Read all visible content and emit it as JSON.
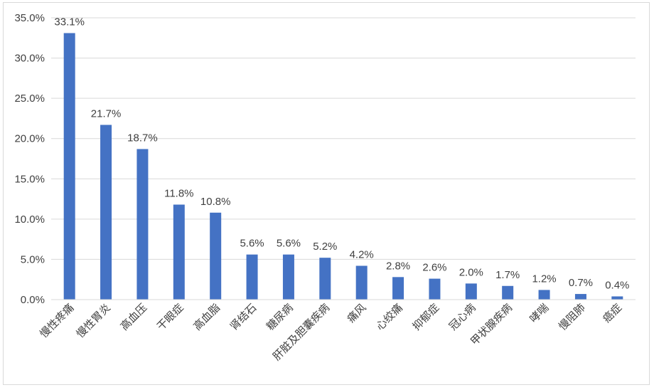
{
  "chart_data": {
    "type": "bar",
    "title": "",
    "xlabel": "",
    "ylabel": "",
    "ylim": [
      0,
      35
    ],
    "y_tick_labels": [
      "0.0%",
      "5.0%",
      "10.0%",
      "15.0%",
      "20.0%",
      "25.0%",
      "30.0%",
      "35.0%"
    ],
    "y_ticks": [
      0,
      5,
      10,
      15,
      20,
      25,
      30,
      35
    ],
    "grid": true,
    "bar_color": "#4472C4",
    "categories": [
      "慢性疼痛",
      "慢性胃炎",
      "高血压",
      "干眼症",
      "高血脂",
      "肾结石",
      "糖尿病",
      "肝脏及胆囊疾病",
      "痛风",
      "心绞痛",
      "抑郁症",
      "冠心病",
      "甲状腺疾病",
      "哮喘",
      "慢阻肺",
      "癌症"
    ],
    "values": [
      33.1,
      21.7,
      18.7,
      11.8,
      10.8,
      5.6,
      5.6,
      5.2,
      4.2,
      2.8,
      2.6,
      2.0,
      1.7,
      1.2,
      0.7,
      0.4
    ],
    "data_labels": [
      "33.1%",
      "21.7%",
      "18.7%",
      "11.8%",
      "10.8%",
      "5.6%",
      "5.6%",
      "5.2%",
      "4.2%",
      "2.8%",
      "2.6%",
      "2.0%",
      "1.7%",
      "1.2%",
      "0.7%",
      "0.4%"
    ]
  }
}
